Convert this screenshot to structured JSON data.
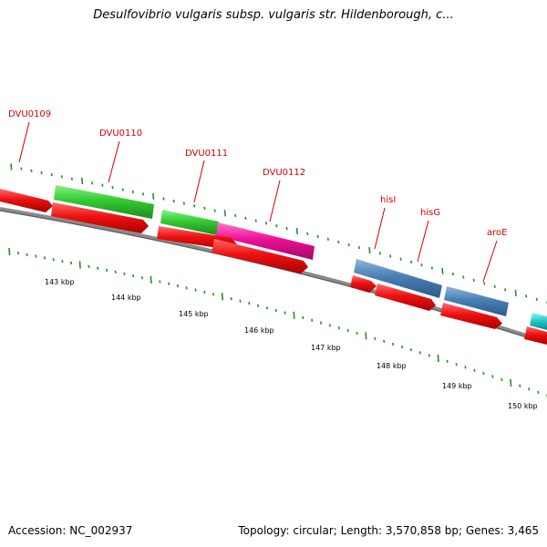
{
  "header": {
    "title": "Desulfovibrio vulgaris subsp. vulgaris str. Hildenborough, c..."
  },
  "footer": {
    "accession": "Accession: NC_002937",
    "stats": "Topology: circular; Length: 3,570,858 bp; Genes: 3,465"
  },
  "colors": {
    "backbone": "#7a7a7a",
    "cds": "#ee1111",
    "tick": "#2a8a2a",
    "label": "#d40000",
    "gene_green": "#33cc33",
    "gene_magenta": "#ee1199",
    "gene_blue": "#4a7fb5",
    "gene_cyan": "#22cccc"
  },
  "scale_labels": [
    "143 kbp",
    "144 kbp",
    "145 kbp",
    "146 kbp",
    "147 kbp",
    "148 kbp",
    "149 kbp",
    "150 kbp"
  ],
  "gene_labels": [
    "DVU0109",
    "DVU0110",
    "DVU0111",
    "DVU0112",
    "hisI",
    "hisG",
    "aroE"
  ]
}
